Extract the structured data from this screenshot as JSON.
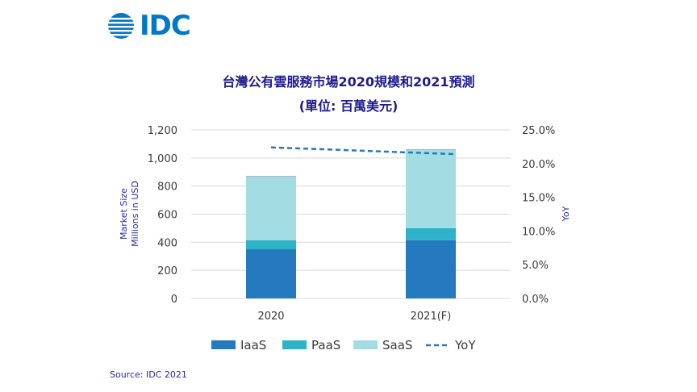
{
  "brand": {
    "logo_text": "IDC",
    "color": "#0078C8"
  },
  "title": "台灣公有雲服務市場2020規模和2021預測",
  "subtitle": "(單位: 百萬美元)",
  "source": "Source: IDC 2021",
  "colors": {
    "title": "#1F1A8F",
    "axis_text": "#3A3A3A",
    "axis_label": "#2B2BA8",
    "grid": "#D9D9D9",
    "iaas": "#2479BF",
    "paas": "#2DB2C8",
    "saas": "#A4DCE4",
    "yoy": "#2479BF"
  },
  "chart_data": {
    "type": "bar",
    "stacked": true,
    "categories": [
      "2020",
      "2021(F)"
    ],
    "series": [
      {
        "name": "IaaS",
        "values": [
          350,
          415
        ]
      },
      {
        "name": "PaaS",
        "values": [
          65,
          85
        ]
      },
      {
        "name": "SaaS",
        "values": [
          455,
          560
        ]
      }
    ],
    "line_series": {
      "name": "YoY",
      "values": [
        0.224,
        0.214
      ],
      "axis": "right"
    },
    "ylabel_lines": [
      "Market Size",
      "Millions in USD"
    ],
    "y2label": "YoY",
    "ylim": [
      0,
      1200
    ],
    "y_ticks": [
      "0",
      "200",
      "400",
      "600",
      "800",
      "1,000",
      "1,200"
    ],
    "y2lim": [
      0,
      0.25
    ],
    "y2_ticks": [
      "0.0%",
      "5.0%",
      "10.0%",
      "15.0%",
      "20.0%",
      "25.0%"
    ],
    "grid": true,
    "legend_position": "bottom"
  }
}
